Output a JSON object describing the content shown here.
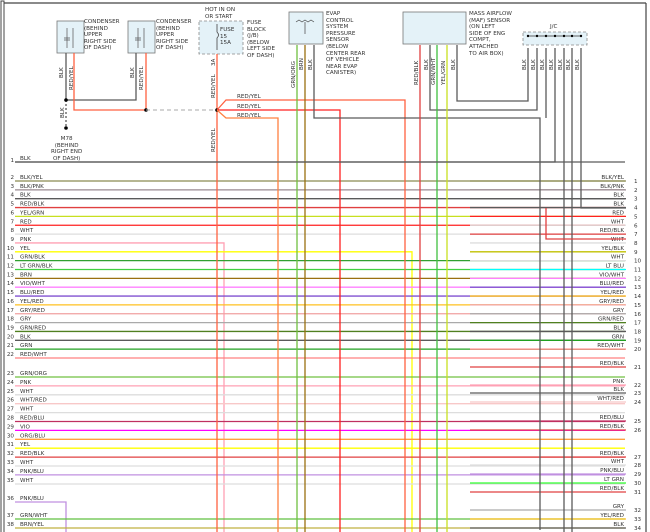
{
  "components": {
    "condenser_1": {
      "label": "CONDENSER\n(BEHIND\nUPPER\nRIGHT SIDE\nOF DASH)",
      "pins": [
        "2",
        "1"
      ],
      "wires": [
        "BLK",
        "RED/YEL"
      ]
    },
    "condenser_2": {
      "label": "CONDENSER\n(BEHIND\nUPPER\nRIGHT SIDE\nOF DASH)",
      "pins": [
        "2",
        "1"
      ],
      "wires": [
        "BLK",
        "RED/YEL"
      ]
    },
    "fuse_block": {
      "hot_label": "HOT IN ON\nOR START",
      "fuse_label": "FUSE\n15\n15A",
      "label": "FUSE\nBLOCK\n(J/B)\n(BELOW\nLEFT SIDE\nOF DASH)",
      "pin": "3A",
      "wire": "RED/YEL"
    },
    "evap_sensor": {
      "label": "EVAP\nCONTROL\nSYSTEM\nPRESSURE\nSENSOR\n(BELOW\nCENTER REAR\nOF VEHICLE\nNEAR EVAP\nCANISTER)",
      "pins": [
        "3",
        "2",
        "1"
      ],
      "wires": [
        "GRN/ORG",
        "BRN",
        "BLK"
      ]
    },
    "maf_sensor": {
      "label": "MASS AIRFLOW\n(MAF) SENSOR\n(ON LEFT\nSIDE OF ENG\nCOMPT,\nATTACHED\nTO AIR BOX)",
      "pins": [
        "1",
        "2",
        "3",
        "4",
        "5",
        "6"
      ],
      "wires": [
        "RED/BLK",
        "BLK",
        "GRN/WHT",
        "YEL/GRN",
        "BLK"
      ]
    },
    "jc": {
      "label": "J/C",
      "wires": [
        "BLK",
        "BLK",
        "BLK",
        "BLK",
        "BLK",
        "BLK",
        "BLK"
      ]
    },
    "ground": {
      "label": "M78\n(BEHIND\nRIGHT END\nOF DASH)",
      "wire": "BLK"
    },
    "fuse_branch_wires": [
      "RED/YEL",
      "RED/YEL",
      "RED/YEL"
    ],
    "fuse_lower_wire": "RED/YEL"
  },
  "left_wires": [
    {
      "num": "1",
      "label": "BLK"
    },
    {
      "num": "2",
      "label": "BLK/YEL"
    },
    {
      "num": "3",
      "label": "BLK/PNK"
    },
    {
      "num": "4",
      "label": "BLK"
    },
    {
      "num": "5",
      "label": "RED/BLK"
    },
    {
      "num": "6",
      "label": "YEL/GRN"
    },
    {
      "num": "7",
      "label": "RED"
    },
    {
      "num": "8",
      "label": "WHT"
    },
    {
      "num": "9",
      "label": "PNK"
    },
    {
      "num": "10",
      "label": "YEL"
    },
    {
      "num": "11",
      "label": "GRN/BLK"
    },
    {
      "num": "12",
      "label": "LT GRN/BLK"
    },
    {
      "num": "13",
      "label": "BRN"
    },
    {
      "num": "14",
      "label": "VIO/WHT"
    },
    {
      "num": "15",
      "label": "BLU/RED"
    },
    {
      "num": "16",
      "label": "YEL/RED"
    },
    {
      "num": "17",
      "label": "GRY/RED"
    },
    {
      "num": "18",
      "label": "GRY"
    },
    {
      "num": "19",
      "label": "GRN/RED"
    },
    {
      "num": "20",
      "label": "BLK"
    },
    {
      "num": "21",
      "label": "GRN"
    },
    {
      "num": "22",
      "label": "RED/WHT"
    },
    {
      "num": "23",
      "label": "GRN/ORG"
    },
    {
      "num": "24",
      "label": "PNK"
    },
    {
      "num": "25",
      "label": "WHT"
    },
    {
      "num": "26",
      "label": "WHT/RED"
    },
    {
      "num": "27",
      "label": "WHT"
    },
    {
      "num": "28",
      "label": "RED/BLU"
    },
    {
      "num": "29",
      "label": "VIO"
    },
    {
      "num": "30",
      "label": "ORG/BLU"
    },
    {
      "num": "31",
      "label": "YEL"
    },
    {
      "num": "32",
      "label": "RED/BLK"
    },
    {
      "num": "33",
      "label": "WHT"
    },
    {
      "num": "34",
      "label": "PNK/BLU"
    },
    {
      "num": "35",
      "label": "WHT"
    },
    {
      "num": "36",
      "label": "PNK/BLU"
    },
    {
      "num": "37",
      "label": "GRN/WHT"
    },
    {
      "num": "38",
      "label": "BRN/YEL"
    }
  ],
  "right_wires": [
    {
      "num": "1",
      "label": "BLK/YEL"
    },
    {
      "num": "2",
      "label": "BLK/PNK"
    },
    {
      "num": "3",
      "label": "BLK"
    },
    {
      "num": "4",
      "label": "BLK"
    },
    {
      "num": "5",
      "label": "RED"
    },
    {
      "num": "6",
      "label": "WHT"
    },
    {
      "num": "7",
      "label": "RED/BLK"
    },
    {
      "num": "8",
      "label": "WHT"
    },
    {
      "num": "9",
      "label": "YEL/BLK"
    },
    {
      "num": "10",
      "label": "WHT"
    },
    {
      "num": "11",
      "label": "LT BLU"
    },
    {
      "num": "12",
      "label": "VIO/WHT"
    },
    {
      "num": "13",
      "label": "BLU/RED"
    },
    {
      "num": "14",
      "label": "YEL/RED"
    },
    {
      "num": "15",
      "label": "GRY/RED"
    },
    {
      "num": "16",
      "label": "GRY"
    },
    {
      "num": "17",
      "label": "GRN/RED"
    },
    {
      "num": "18",
      "label": "BLK"
    },
    {
      "num": "19",
      "label": "GRN"
    },
    {
      "num": "20",
      "label": "RED/WHT"
    },
    {
      "num": "21",
      "label": "RED/BLK"
    },
    {
      "num": "22",
      "label": "PNK"
    },
    {
      "num": "23",
      "label": "BLK"
    },
    {
      "num": "24",
      "label": "WHT/RED"
    },
    {
      "num": "25",
      "label": "RED/BLU"
    },
    {
      "num": "26",
      "label": "RED/BLK"
    },
    {
      "num": "27",
      "label": "RED/BLK"
    },
    {
      "num": "28",
      "label": "WHT"
    },
    {
      "num": "29",
      "label": "PNK/BLU"
    },
    {
      "num": "30",
      "label": "LT GRN"
    },
    {
      "num": "31",
      "label": "RED/BLK"
    },
    {
      "num": "32",
      "label": "GRY"
    },
    {
      "num": "33",
      "label": "YEL/RED"
    },
    {
      "num": "34",
      "label": "BLK"
    }
  ],
  "wire_colors": {
    "BLK": "#5a5a5a",
    "BLK/YEL": "#8a8a50",
    "BLK/PNK": "#9a8a90",
    "RED/BLK": "#e04040",
    "YEL/GRN": "#c8e020",
    "RED": "#ff2020",
    "WHT": "#dddddd",
    "PNK": "#ffa0b4",
    "YEL": "#ffff00",
    "GRN/BLK": "#30a030",
    "LT GRN/BLK": "#40d040",
    "BRN": "#9a7010",
    "VIO/WHT": "#ff80ff",
    "BLU/RED": "#8050d0",
    "YEL/RED": "#ffc020",
    "GRY/RED": "#f0a0a0",
    "GRY": "#aaaaaa",
    "GRN/RED": "#508020",
    "GRN": "#20a020",
    "RED/WHT": "#ff8080",
    "GRN/ORG": "#70c040",
    "WHT/RED": "#f8c8c8",
    "RED/BLU": "#c03060",
    "VIO": "#ff00ff",
    "ORG/BLU": "#ffa040",
    "PNK/BLU": "#c090e0",
    "GRN/WHT": "#60c040",
    "BRN/YEL": "#c0b040",
    "YEL/BLK": "#c0c000",
    "LT BLU": "#00ffff",
    "LT GRN": "#30ff30",
    "RED/YEL": "#ff6040",
    "GRN/WHT_MAF": "#40c040"
  },
  "box_fill": "#e4f2f8"
}
